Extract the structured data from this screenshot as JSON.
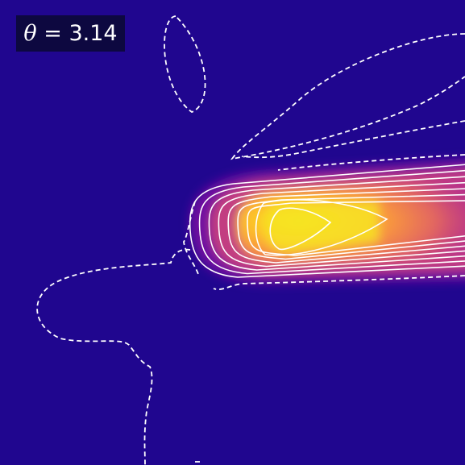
{
  "label": {
    "symbol": "θ",
    "equals": " = ",
    "value": "3.14"
  },
  "colors": {
    "background": "#20068f",
    "label_box": "#0d0840",
    "contour": "#ffffff",
    "colormap": "plasma"
  },
  "chart_data": {
    "type": "heatmap",
    "title": "",
    "xlabel": "",
    "ylabel": "",
    "colormap": "plasma",
    "grid": false,
    "annotation": "θ = 3.14",
    "peak_value": 1.0,
    "contour_levels_solid": [
      0.1,
      0.2,
      0.3,
      0.4,
      0.5,
      0.6,
      0.7,
      0.8,
      0.9
    ],
    "contour_levels_dashed": [
      -0.05,
      0.02
    ]
  }
}
